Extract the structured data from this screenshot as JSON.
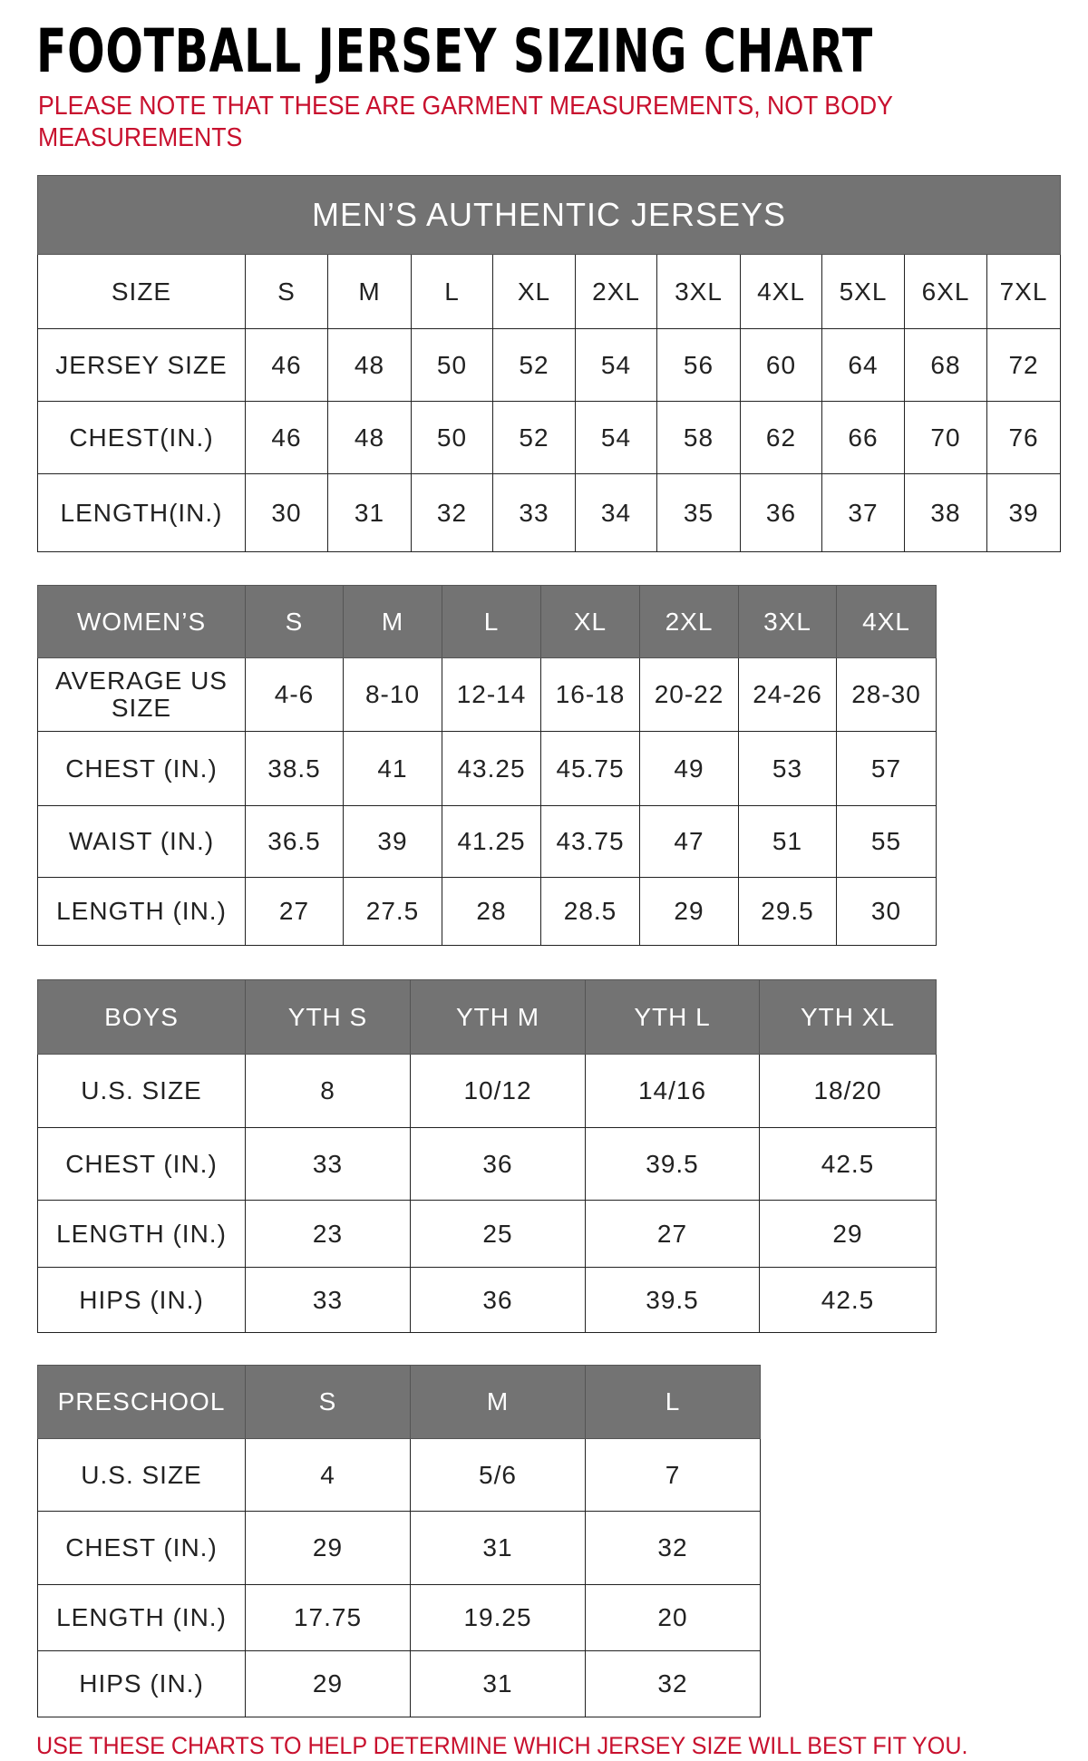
{
  "title": "FOOTBALL JERSEY SIZING CHART",
  "note": "PLEASE NOTE THAT THESE ARE GARMENT MEASUREMENTS, NOT BODY MEASUREMENTS",
  "footer": "USE THESE CHARTS TO HELP DETERMINE WHICH JERSEY SIZE WILL BEST FIT YOU.",
  "colors": {
    "header_bg": "#737373",
    "note_red": "#c8102e"
  },
  "tables": [
    {
      "title": "MEN’S AUTHENTIC JERSEYS",
      "header": [
        "SIZE",
        "S",
        "M",
        "L",
        "XL",
        "2XL",
        "3XL",
        "4XL",
        "5XL",
        "6XL",
        "7XL"
      ],
      "rows": [
        [
          "JERSEY SIZE",
          "46",
          "48",
          "50",
          "52",
          "54",
          "56",
          "60",
          "64",
          "68",
          "72"
        ],
        [
          "CHEST(IN.)",
          "46",
          "48",
          "50",
          "52",
          "54",
          "58",
          "62",
          "66",
          "70",
          "76"
        ],
        [
          "LENGTH(IN.)",
          "30",
          "31",
          "32",
          "33",
          "34",
          "35",
          "36",
          "37",
          "38",
          "39"
        ]
      ]
    },
    {
      "header": [
        "WOMEN’S",
        "S",
        "M",
        "L",
        "XL",
        "2XL",
        "3XL",
        "4XL"
      ],
      "rows": [
        [
          "AVERAGE US SIZE",
          "4-6",
          "8-10",
          "12-14",
          "16-18",
          "20-22",
          "24-26",
          "28-30"
        ],
        [
          "CHEST (IN.)",
          "38.5",
          "41",
          "43.25",
          "45.75",
          "49",
          "53",
          "57"
        ],
        [
          "WAIST (IN.)",
          "36.5",
          "39",
          "41.25",
          "43.75",
          "47",
          "51",
          "55"
        ],
        [
          "LENGTH (IN.)",
          "27",
          "27.5",
          "28",
          "28.5",
          "29",
          "29.5",
          "30"
        ]
      ]
    },
    {
      "header": [
        "BOYS",
        "YTH S",
        "YTH M",
        "YTH L",
        "YTH XL"
      ],
      "rows": [
        [
          "U.S. SIZE",
          "8",
          "10/12",
          "14/16",
          "18/20"
        ],
        [
          "CHEST (IN.)",
          "33",
          "36",
          "39.5",
          "42.5"
        ],
        [
          "LENGTH (IN.)",
          "23",
          "25",
          "27",
          "29"
        ],
        [
          "HIPS (IN.)",
          "33",
          "36",
          "39.5",
          "42.5"
        ]
      ]
    },
    {
      "header": [
        "PRESCHOOL",
        "S",
        "M",
        "L"
      ],
      "rows": [
        [
          "U.S. SIZE",
          "4",
          "5/6",
          "7"
        ],
        [
          "CHEST (IN.)",
          "29",
          "31",
          "32"
        ],
        [
          "LENGTH (IN.)",
          "17.75",
          "19.25",
          "20"
        ],
        [
          "HIPS (IN.)",
          "29",
          "31",
          "32"
        ]
      ]
    }
  ]
}
